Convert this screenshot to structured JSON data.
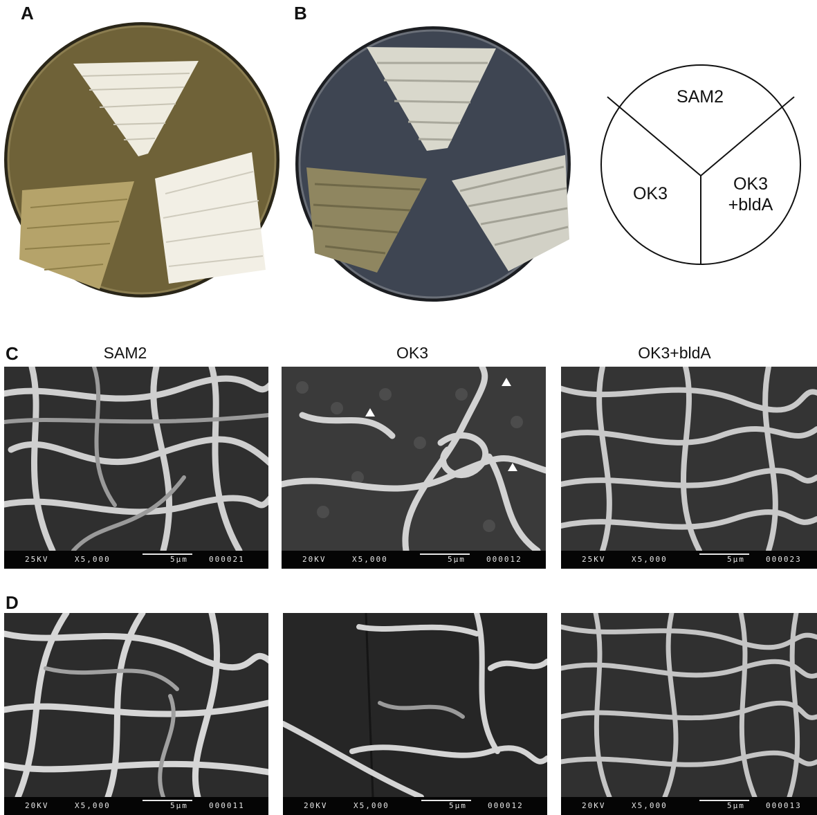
{
  "panels": {
    "a": "A",
    "b": "B",
    "c": "C",
    "d": "D"
  },
  "diagram": {
    "top": "SAM2",
    "left": "OK3",
    "right_line1": "OK3",
    "right_line2": "+bldA"
  },
  "columns": [
    "SAM2",
    "OK3",
    "OK3+bldA"
  ],
  "sem_row_c": [
    {
      "kv": "25KV",
      "mag": "X5,000",
      "scale": "5μm",
      "image_no": "000021"
    },
    {
      "kv": "20KV",
      "mag": "X5,000",
      "scale": "5μm",
      "image_no": "000012"
    },
    {
      "kv": "25KV",
      "mag": "X5,000",
      "scale": "5μm",
      "image_no": "000023"
    }
  ],
  "sem_row_d": [
    {
      "kv": "20KV",
      "mag": "X5,000",
      "scale": "5μm",
      "image_no": "000011"
    },
    {
      "kv": "20KV",
      "mag": "X5,000",
      "scale": "5μm",
      "image_no": "000012"
    },
    {
      "kv": "20KV",
      "mag": "X5,000",
      "scale": "5μm",
      "image_no": "000013"
    }
  ],
  "colors": {
    "plate_a_agar": "#6f6238",
    "plate_b_agar": "#3e4552",
    "colony_white": "#f1eee2",
    "colony_yellow": "#b8a56a"
  }
}
